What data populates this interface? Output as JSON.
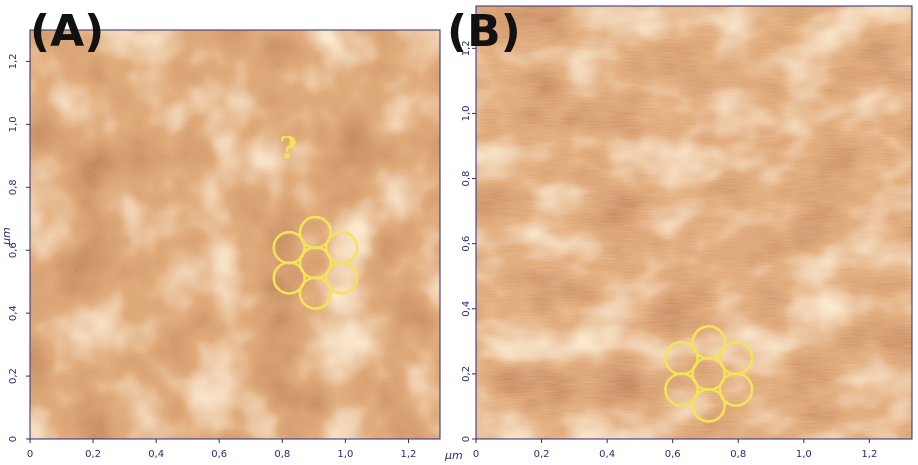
{
  "colors": {
    "afm_dark": "#6e1800",
    "afm_mid": "#b65726",
    "afm_light": "#f2cfa0",
    "overlay": "#f4e25a",
    "axis": "#2a2a7a"
  },
  "panels": [
    {
      "label": "(A)",
      "annotation": "?",
      "axis_unit": "µm",
      "x_ticks": [
        "0",
        "0,2",
        "0,4",
        "0,6",
        "0,8",
        "1,0",
        "1,2"
      ],
      "y_ticks": [
        "0",
        "0,2",
        "0,4",
        "0,6",
        "0,8",
        "1,0",
        "1,2"
      ],
      "x_values": [
        0,
        0.2,
        0.4,
        0.6,
        0.8,
        1.0,
        1.2
      ],
      "y_values": [
        0,
        0.2,
        0.4,
        0.6,
        0.8,
        1.0,
        1.2
      ],
      "range_um": [
        0,
        1.3
      ],
      "hex_center_um": [
        0.905,
        0.56
      ],
      "ring_radius_um": 0.05,
      "ring_spacing_um": 0.1
    },
    {
      "label": "(B)",
      "axis_unit": "µm",
      "x_ticks": [
        "0",
        "0,2",
        "0,4",
        "0,6",
        "0,8",
        "1,0",
        "1,2"
      ],
      "y_ticks": [
        "0",
        "0,2",
        "0,4",
        "0,6",
        "0,8",
        "1,0",
        "1,2"
      ],
      "x_values": [
        0,
        0.2,
        0.4,
        0.6,
        0.8,
        1.0,
        1.2
      ],
      "y_values": [
        0,
        0.2,
        0.4,
        0.6,
        0.8,
        1.0,
        1.2
      ],
      "range_um": [
        0,
        1.33
      ],
      "hex_center_um": [
        0.71,
        0.2
      ],
      "ring_radius_um": 0.05,
      "ring_spacing_um": 0.1
    }
  ]
}
